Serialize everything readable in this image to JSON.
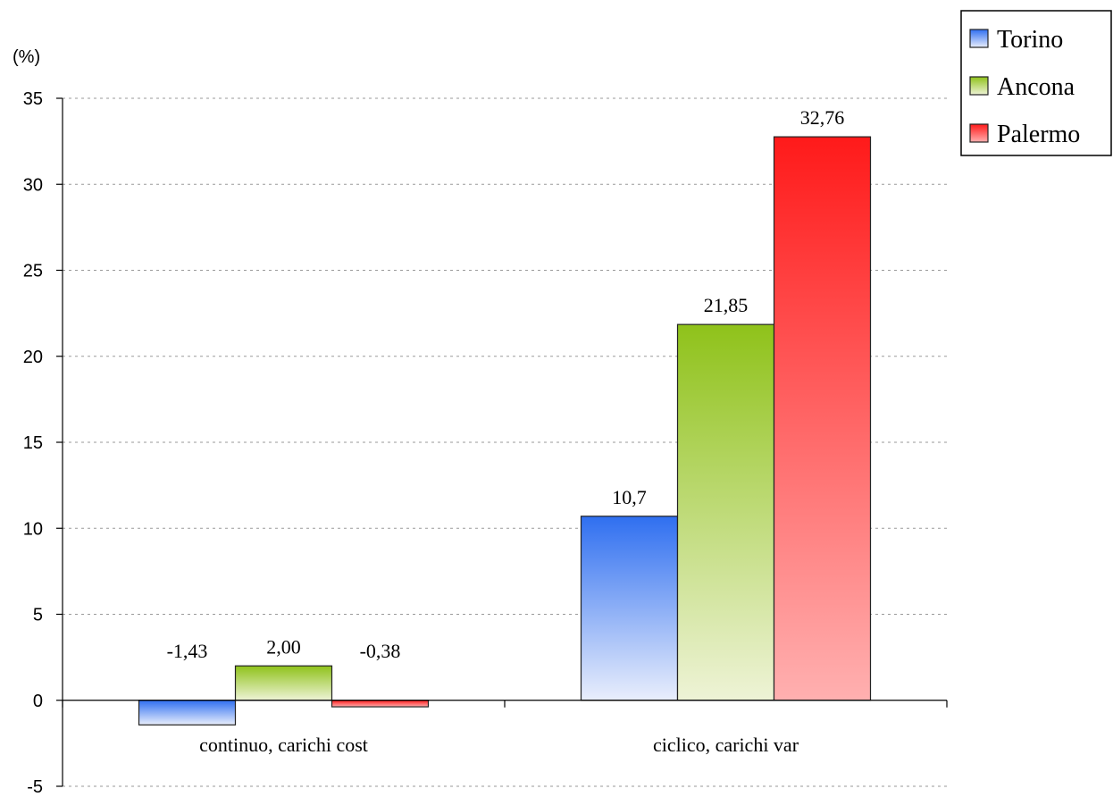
{
  "chart_data": {
    "type": "bar",
    "ylabel": "(%)",
    "ylim": [
      -5,
      35
    ],
    "ytick_step": 5,
    "yticks": [
      "-5",
      "0",
      "5",
      "10",
      "15",
      "20",
      "25",
      "30",
      "35"
    ],
    "grid": true,
    "legend_position": "top-right",
    "categories": [
      "continuo, carichi cost",
      "ciclico, carichi var"
    ],
    "series": [
      {
        "name": "Torino",
        "values": [
          -1.43,
          10.7
        ],
        "labels": [
          "-1,43",
          "10,7"
        ],
        "color": "#2f6ff0",
        "light": "#e9eefc"
      },
      {
        "name": "Ancona",
        "values": [
          2.0,
          21.85
        ],
        "labels": [
          "2,00",
          "21,85"
        ],
        "color": "#8fc21a",
        "light": "#eef3d6"
      },
      {
        "name": "Palermo",
        "values": [
          -0.38,
          32.76
        ],
        "labels": [
          "-0,38",
          "32,76"
        ],
        "color": "#ff1a1a",
        "light": "#ffb0b0"
      }
    ]
  }
}
